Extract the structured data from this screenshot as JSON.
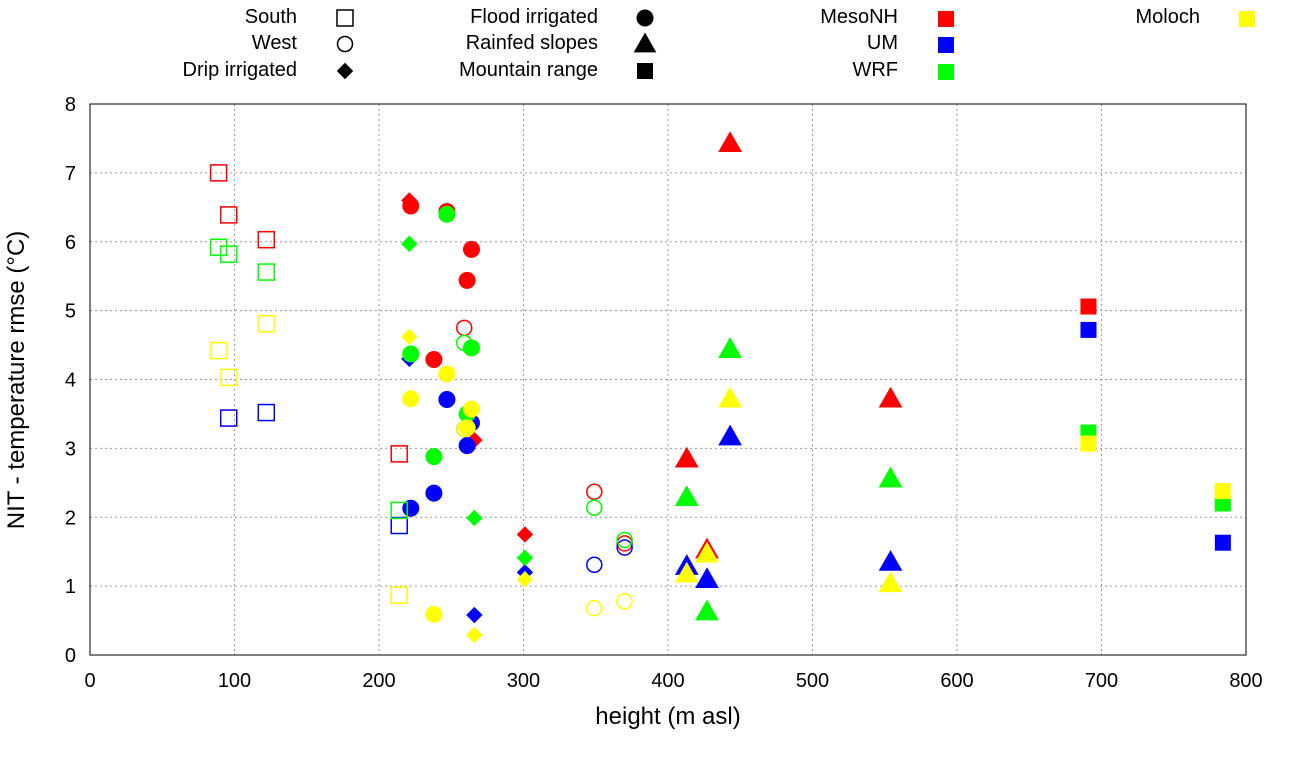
{
  "chart_data": {
    "type": "scatter",
    "xlabel": "height (m asl)",
    "ylabel": "NIT - temperature rmse (°C)",
    "xlim": [
      0,
      800
    ],
    "ylim": [
      0,
      8
    ],
    "xticks": [
      0,
      100,
      200,
      300,
      400,
      500,
      600,
      700,
      800
    ],
    "yticks": [
      0,
      1,
      2,
      3,
      4,
      5,
      6,
      7,
      8
    ],
    "grid": true,
    "legend_placement": "top",
    "shape_legend": [
      {
        "label": "South",
        "shape": "open-square"
      },
      {
        "label": "West",
        "shape": "open-circle"
      },
      {
        "label": "Drip irrigated",
        "shape": "diamond"
      },
      {
        "label": "Flood irrigated",
        "shape": "circle"
      },
      {
        "label": "Rainfed slopes",
        "shape": "triangle"
      },
      {
        "label": "Mountain range",
        "shape": "square"
      }
    ],
    "series": [
      {
        "name": "MesoNH",
        "color": "#ff0000",
        "points": [
          {
            "x": 89,
            "y": 7.0,
            "shape": "open-square"
          },
          {
            "x": 96,
            "y": 6.39,
            "shape": "open-square"
          },
          {
            "x": 122,
            "y": 6.03,
            "shape": "open-square"
          },
          {
            "x": 214,
            "y": 2.92,
            "shape": "open-square"
          },
          {
            "x": 259,
            "y": 4.75,
            "shape": "open-circle"
          },
          {
            "x": 349,
            "y": 2.37,
            "shape": "open-circle"
          },
          {
            "x": 370,
            "y": 1.62,
            "shape": "open-circle"
          },
          {
            "x": 221,
            "y": 6.6,
            "shape": "diamond"
          },
          {
            "x": 266,
            "y": 3.12,
            "shape": "diamond"
          },
          {
            "x": 301,
            "y": 1.75,
            "shape": "diamond"
          },
          {
            "x": 222,
            "y": 6.52,
            "shape": "circle"
          },
          {
            "x": 238,
            "y": 4.29,
            "shape": "circle"
          },
          {
            "x": 247,
            "y": 6.44,
            "shape": "circle"
          },
          {
            "x": 261,
            "y": 5.44,
            "shape": "circle"
          },
          {
            "x": 264,
            "y": 5.89,
            "shape": "circle"
          },
          {
            "x": 413,
            "y": 2.85,
            "shape": "triangle"
          },
          {
            "x": 427,
            "y": 1.53,
            "shape": "triangle"
          },
          {
            "x": 443,
            "y": 7.43,
            "shape": "triangle"
          },
          {
            "x": 554,
            "y": 3.72,
            "shape": "triangle"
          },
          {
            "x": 691,
            "y": 5.06,
            "shape": "square"
          }
        ]
      },
      {
        "name": "UM",
        "color": "#0000ff",
        "points": [
          {
            "x": 96,
            "y": 3.44,
            "shape": "open-square"
          },
          {
            "x": 122,
            "y": 3.52,
            "shape": "open-square"
          },
          {
            "x": 214,
            "y": 1.88,
            "shape": "open-square"
          },
          {
            "x": 259,
            "y": 3.28,
            "shape": "open-circle"
          },
          {
            "x": 349,
            "y": 1.31,
            "shape": "open-circle"
          },
          {
            "x": 370,
            "y": 1.56,
            "shape": "open-circle"
          },
          {
            "x": 221,
            "y": 4.3,
            "shape": "diamond"
          },
          {
            "x": 266,
            "y": 0.58,
            "shape": "diamond"
          },
          {
            "x": 301,
            "y": 1.2,
            "shape": "diamond"
          },
          {
            "x": 222,
            "y": 2.13,
            "shape": "circle"
          },
          {
            "x": 238,
            "y": 2.35,
            "shape": "circle"
          },
          {
            "x": 247,
            "y": 3.71,
            "shape": "circle"
          },
          {
            "x": 261,
            "y": 3.04,
            "shape": "circle"
          },
          {
            "x": 264,
            "y": 3.37,
            "shape": "circle"
          },
          {
            "x": 413,
            "y": 1.29,
            "shape": "triangle"
          },
          {
            "x": 427,
            "y": 1.1,
            "shape": "triangle"
          },
          {
            "x": 443,
            "y": 3.17,
            "shape": "triangle"
          },
          {
            "x": 554,
            "y": 1.35,
            "shape": "triangle"
          },
          {
            "x": 691,
            "y": 4.72,
            "shape": "square"
          },
          {
            "x": 784,
            "y": 1.63,
            "shape": "square"
          }
        ]
      },
      {
        "name": "WRF",
        "color": "#00ff00",
        "points": [
          {
            "x": 89,
            "y": 5.92,
            "shape": "open-square"
          },
          {
            "x": 96,
            "y": 5.82,
            "shape": "open-square"
          },
          {
            "x": 122,
            "y": 5.56,
            "shape": "open-square"
          },
          {
            "x": 214,
            "y": 2.1,
            "shape": "open-square"
          },
          {
            "x": 259,
            "y": 4.53,
            "shape": "open-circle"
          },
          {
            "x": 349,
            "y": 2.14,
            "shape": "open-circle"
          },
          {
            "x": 370,
            "y": 1.67,
            "shape": "open-circle"
          },
          {
            "x": 221,
            "y": 5.97,
            "shape": "diamond"
          },
          {
            "x": 266,
            "y": 1.99,
            "shape": "diamond"
          },
          {
            "x": 301,
            "y": 1.41,
            "shape": "diamond"
          },
          {
            "x": 222,
            "y": 4.37,
            "shape": "circle"
          },
          {
            "x": 238,
            "y": 2.88,
            "shape": "circle"
          },
          {
            "x": 247,
            "y": 6.4,
            "shape": "circle"
          },
          {
            "x": 261,
            "y": 3.5,
            "shape": "circle"
          },
          {
            "x": 264,
            "y": 4.46,
            "shape": "circle"
          },
          {
            "x": 413,
            "y": 2.29,
            "shape": "triangle"
          },
          {
            "x": 427,
            "y": 0.63,
            "shape": "triangle"
          },
          {
            "x": 443,
            "y": 4.44,
            "shape": "triangle"
          },
          {
            "x": 554,
            "y": 2.56,
            "shape": "triangle"
          },
          {
            "x": 691,
            "y": 3.23,
            "shape": "square"
          },
          {
            "x": 784,
            "y": 2.2,
            "shape": "square"
          }
        ]
      },
      {
        "name": "Moloch",
        "color": "#ffff00",
        "points": [
          {
            "x": 89,
            "y": 4.42,
            "shape": "open-square"
          },
          {
            "x": 96,
            "y": 4.03,
            "shape": "open-square"
          },
          {
            "x": 122,
            "y": 4.81,
            "shape": "open-square"
          },
          {
            "x": 214,
            "y": 0.87,
            "shape": "open-square"
          },
          {
            "x": 259,
            "y": 3.28,
            "shape": "open-circle"
          },
          {
            "x": 349,
            "y": 0.68,
            "shape": "open-circle"
          },
          {
            "x": 370,
            "y": 0.78,
            "shape": "open-circle"
          },
          {
            "x": 221,
            "y": 4.62,
            "shape": "diamond"
          },
          {
            "x": 266,
            "y": 0.29,
            "shape": "diamond"
          },
          {
            "x": 301,
            "y": 1.1,
            "shape": "diamond"
          },
          {
            "x": 222,
            "y": 3.72,
            "shape": "circle"
          },
          {
            "x": 238,
            "y": 0.59,
            "shape": "circle"
          },
          {
            "x": 247,
            "y": 4.08,
            "shape": "circle"
          },
          {
            "x": 261,
            "y": 3.3,
            "shape": "circle"
          },
          {
            "x": 264,
            "y": 3.57,
            "shape": "circle"
          },
          {
            "x": 413,
            "y": 1.18,
            "shape": "triangle"
          },
          {
            "x": 427,
            "y": 1.47,
            "shape": "triangle"
          },
          {
            "x": 443,
            "y": 3.72,
            "shape": "triangle"
          },
          {
            "x": 554,
            "y": 1.04,
            "shape": "triangle"
          },
          {
            "x": 691,
            "y": 3.07,
            "shape": "square"
          },
          {
            "x": 784,
            "y": 2.38,
            "shape": "square"
          }
        ]
      }
    ]
  }
}
